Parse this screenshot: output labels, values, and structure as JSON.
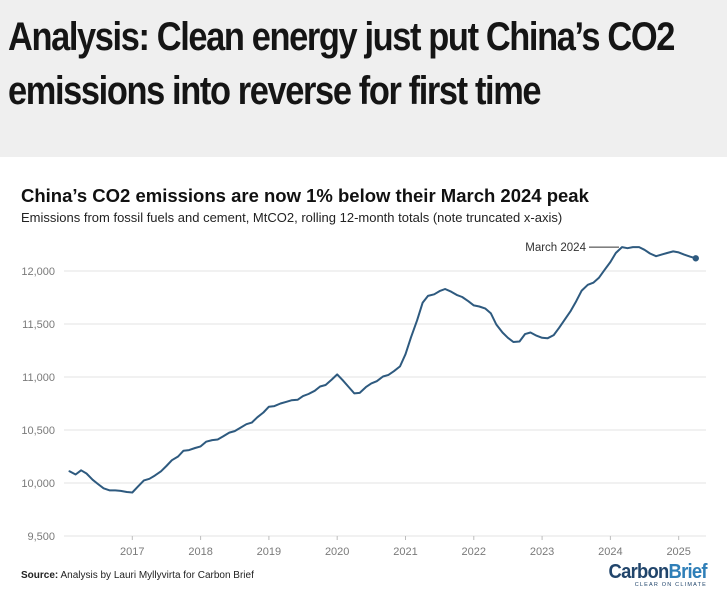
{
  "headline": "Analysis: Clean energy just put China’s CO2 emissions into reverse for first time",
  "chart_data": {
    "type": "line",
    "title": "China’s CO2 emissions are now 1% below their March 2024 peak",
    "subtitle": "Emissions from fossil fuels and cement, MtCO2, rolling 12-month totals (note truncated x-axis)",
    "xlabel": "",
    "ylabel": "",
    "ylim": [
      9500,
      12300
    ],
    "xlim": [
      2016.0,
      2025.4
    ],
    "yticks": [
      9500,
      10000,
      10500,
      11000,
      11500,
      12000
    ],
    "ytick_labels": [
      "9,500",
      "10,000",
      "10,500",
      "11,000",
      "11,500",
      "12,000"
    ],
    "xticks": [
      2017,
      2018,
      2019,
      2020,
      2021,
      2022,
      2023,
      2024,
      2025
    ],
    "xtick_labels": [
      "2017",
      "2018",
      "2019",
      "2020",
      "2021",
      "2022",
      "2023",
      "2024",
      "2025"
    ],
    "grid": true,
    "line_color": "#2e5a7f",
    "annotation": {
      "label": "March 2024",
      "x": 2024.17,
      "y": 12225
    },
    "series": [
      {
        "x": [
          2016.08,
          2016.17,
          2016.25,
          2016.33,
          2016.42,
          2016.5,
          2016.58,
          2016.67,
          2016.75,
          2016.83,
          2016.92,
          2017.0,
          2017.08,
          2017.17,
          2017.25,
          2017.33,
          2017.42,
          2017.5,
          2017.58,
          2017.67,
          2017.75,
          2017.83,
          2017.92,
          2018.0,
          2018.08,
          2018.17,
          2018.25,
          2018.33,
          2018.42,
          2018.5,
          2018.58,
          2018.67,
          2018.75,
          2018.83,
          2018.92,
          2019.0,
          2019.08,
          2019.17,
          2019.25,
          2019.33,
          2019.42,
          2019.5,
          2019.58,
          2019.67,
          2019.75,
          2019.83,
          2019.92,
          2020.0,
          2020.08,
          2020.17,
          2020.25,
          2020.33,
          2020.42,
          2020.5,
          2020.58,
          2020.67,
          2020.75,
          2020.83,
          2020.92,
          2021.0,
          2021.08,
          2021.17,
          2021.25,
          2021.33,
          2021.42,
          2021.5,
          2021.58,
          2021.67,
          2021.75,
          2021.83,
          2021.92,
          2022.0,
          2022.08,
          2022.17,
          2022.25,
          2022.33,
          2022.42,
          2022.5,
          2022.58,
          2022.67,
          2022.75,
          2022.83,
          2022.92,
          2023.0,
          2023.08,
          2023.17,
          2023.25,
          2023.33,
          2023.42,
          2023.5,
          2023.58,
          2023.67,
          2023.75,
          2023.83,
          2023.92,
          2024.0,
          2024.08,
          2024.17,
          2024.25,
          2024.33,
          2024.42,
          2024.5,
          2024.58,
          2024.67,
          2024.75,
          2024.83,
          2024.92,
          2025.0,
          2025.08,
          2025.17,
          2025.25
        ],
        "y": [
          10110,
          10080,
          10120,
          10090,
          10030,
          9990,
          9950,
          9930,
          9930,
          9925,
          9915,
          9910,
          9965,
          10025,
          10040,
          10070,
          10110,
          10160,
          10215,
          10250,
          10305,
          10310,
          10330,
          10345,
          10390,
          10405,
          10410,
          10440,
          10475,
          10490,
          10520,
          10555,
          10570,
          10620,
          10665,
          10720,
          10725,
          10750,
          10765,
          10780,
          10785,
          10820,
          10840,
          10870,
          10910,
          10925,
          10975,
          11025,
          10970,
          10905,
          10845,
          10850,
          10905,
          10940,
          10960,
          11005,
          11020,
          11055,
          11100,
          11215,
          11375,
          11535,
          11700,
          11765,
          11780,
          11810,
          11830,
          11805,
          11775,
          11755,
          11715,
          11675,
          11665,
          11645,
          11600,
          11495,
          11420,
          11370,
          11330,
          11335,
          11405,
          11420,
          11390,
          11370,
          11365,
          11395,
          11465,
          11540,
          11625,
          11715,
          11815,
          11870,
          11890,
          11935,
          12015,
          12085,
          12170,
          12225,
          12215,
          12225,
          12225,
          12200,
          12165,
          12140,
          12155,
          12170,
          12185,
          12175,
          12155,
          12135,
          12120
        ]
      }
    ]
  },
  "source": {
    "label": "Source:",
    "text": "Analysis by Lauri Myllyvirta for Carbon Brief"
  },
  "logo": {
    "part1": "Carbon",
    "part2": "Brief",
    "tagline": "CLEAR ON CLIMATE"
  }
}
